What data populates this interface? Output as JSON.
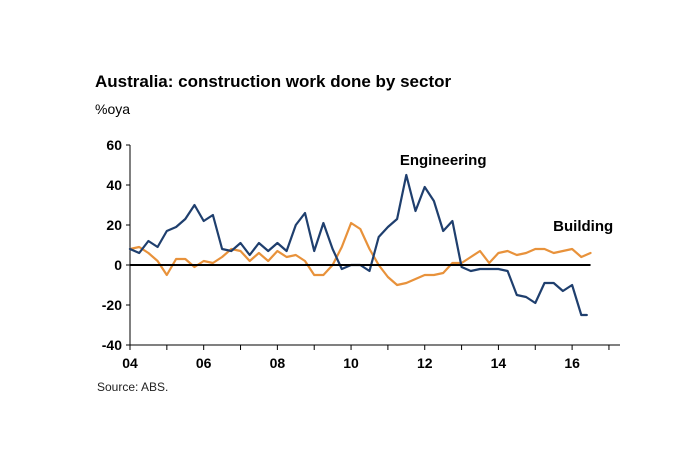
{
  "chart_data": {
    "type": "line",
    "title": "Australia: construction work done by sector",
    "ylabel": "%oya",
    "source": "Source: ABS.",
    "ylim": [
      -40,
      60
    ],
    "xlim": [
      2004,
      2017.3
    ],
    "yticks": [
      60,
      40,
      20,
      0,
      -20,
      -40
    ],
    "xticks": [
      {
        "value": 2004,
        "label": "04"
      },
      {
        "value": 2006,
        "label": "06"
      },
      {
        "value": 2008,
        "label": "08"
      },
      {
        "value": 2010,
        "label": "10"
      },
      {
        "value": 2012,
        "label": "12"
      },
      {
        "value": 2014,
        "label": "14"
      },
      {
        "value": 2016,
        "label": "16"
      }
    ],
    "grid": false,
    "series": [
      {
        "name": "Engineering",
        "color": "#1f3f6e",
        "x": [
          2004.0,
          2004.25,
          2004.5,
          2004.75,
          2005.0,
          2005.25,
          2005.5,
          2005.75,
          2006.0,
          2006.25,
          2006.5,
          2006.75,
          2007.0,
          2007.25,
          2007.5,
          2007.75,
          2008.0,
          2008.25,
          2008.5,
          2008.75,
          2009.0,
          2009.25,
          2009.5,
          2009.75,
          2010.0,
          2010.25,
          2010.5,
          2010.75,
          2011.0,
          2011.25,
          2011.5,
          2011.75,
          2012.0,
          2012.25,
          2012.5,
          2012.75,
          2013.0,
          2013.25,
          2013.5,
          2013.75,
          2014.0,
          2014.25,
          2014.5,
          2014.75,
          2015.0,
          2015.25,
          2015.5,
          2015.75,
          2016.0,
          2016.25,
          2016.4
        ],
        "y": [
          8,
          6,
          12,
          9,
          17,
          19,
          23,
          30,
          22,
          25,
          8,
          7,
          11,
          5,
          11,
          7,
          11,
          7,
          20,
          26,
          7,
          21,
          8,
          -2,
          0,
          0,
          -3,
          14,
          19,
          23,
          45,
          27,
          39,
          32,
          17,
          22,
          -1,
          -3,
          -2,
          -2,
          -2,
          -3,
          -15,
          -16,
          -19,
          -9,
          -9,
          -13,
          -10,
          -25,
          -25
        ]
      },
      {
        "name": "Building",
        "color": "#e8923b",
        "x": [
          2004.0,
          2004.25,
          2004.5,
          2004.75,
          2005.0,
          2005.25,
          2005.5,
          2005.75,
          2006.0,
          2006.25,
          2006.5,
          2006.75,
          2007.0,
          2007.25,
          2007.5,
          2007.75,
          2008.0,
          2008.25,
          2008.5,
          2008.75,
          2009.0,
          2009.25,
          2009.5,
          2009.75,
          2010.0,
          2010.25,
          2010.5,
          2010.75,
          2011.0,
          2011.25,
          2011.5,
          2011.75,
          2012.0,
          2012.25,
          2012.5,
          2012.75,
          2013.0,
          2013.25,
          2013.5,
          2013.75,
          2014.0,
          2014.25,
          2014.5,
          2014.75,
          2015.0,
          2015.25,
          2015.5,
          2015.75,
          2016.0,
          2016.25,
          2016.5
        ],
        "y": [
          8,
          9,
          6,
          2,
          -5,
          3,
          3,
          -1,
          2,
          1,
          4,
          8,
          7,
          2,
          6,
          2,
          7,
          4,
          5,
          2,
          -5,
          -5,
          0,
          9,
          21,
          18,
          8,
          0,
          -6,
          -10,
          -9,
          -7,
          -5,
          -5,
          -4,
          1,
          1,
          4,
          7,
          1,
          6,
          7,
          5,
          6,
          8,
          8,
          6,
          7,
          8,
          4,
          6
        ]
      }
    ]
  }
}
